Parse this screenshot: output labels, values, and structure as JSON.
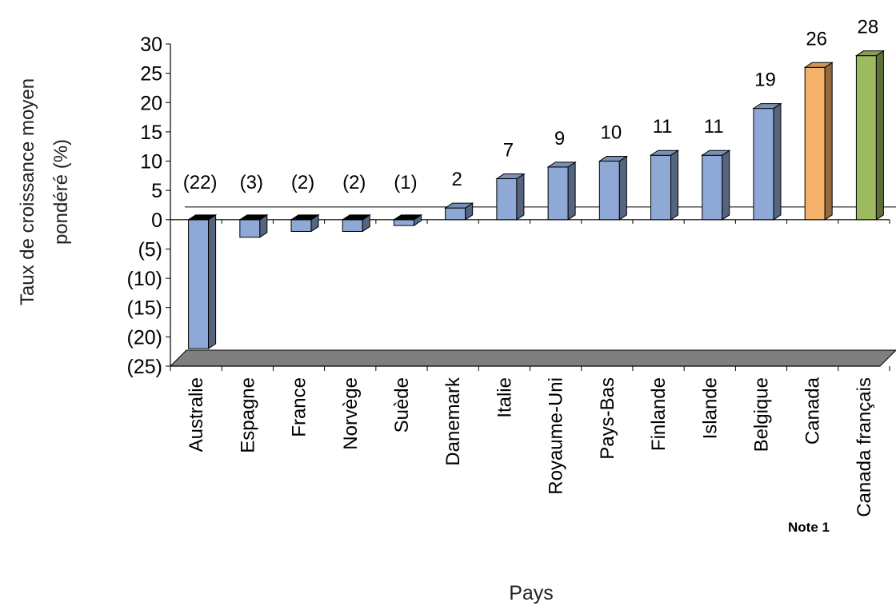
{
  "chart_data": {
    "type": "bar",
    "title": "",
    "xlabel": "Pays",
    "ylabel": "Taux de croissance moyen pondéré (%)",
    "ylim": [
      -25,
      30
    ],
    "yticks": [
      30,
      25,
      20,
      15,
      10,
      5,
      0,
      -5,
      -10,
      -15,
      -20,
      -25
    ],
    "ytick_labels": [
      "30",
      "25",
      "20",
      "15",
      "10",
      "5",
      "0",
      "(5)",
      "(10)",
      "(15)",
      "(20)",
      "(25)"
    ],
    "categories": [
      "Australie",
      "Espagne",
      "France",
      "Norvège",
      "Suède",
      "Danemark",
      "Italie",
      "Royaume-Uni",
      "Pays-Bas",
      "Finlande",
      "Islande",
      "Belgique",
      "Canada",
      "Canada français"
    ],
    "values": [
      -22,
      -3,
      -2,
      -2,
      -1,
      2,
      7,
      9,
      10,
      11,
      11,
      19,
      26,
      28
    ],
    "data_labels": [
      "(22)",
      "(3)",
      "(2)",
      "(2)",
      "(1)",
      "2",
      "7",
      "9",
      "10",
      "11",
      "11",
      "19",
      "26",
      "28"
    ],
    "bar_colors": [
      "#8ea9d6",
      "#8ea9d6",
      "#8ea9d6",
      "#8ea9d6",
      "#8ea9d6",
      "#8ea9d6",
      "#8ea9d6",
      "#8ea9d6",
      "#8ea9d6",
      "#8ea9d6",
      "#8ea9d6",
      "#8ea9d6",
      "#f5b06a",
      "#9bbb5e"
    ],
    "style": "3d-column",
    "grid": false,
    "legend": "none"
  },
  "note": "Note 1"
}
